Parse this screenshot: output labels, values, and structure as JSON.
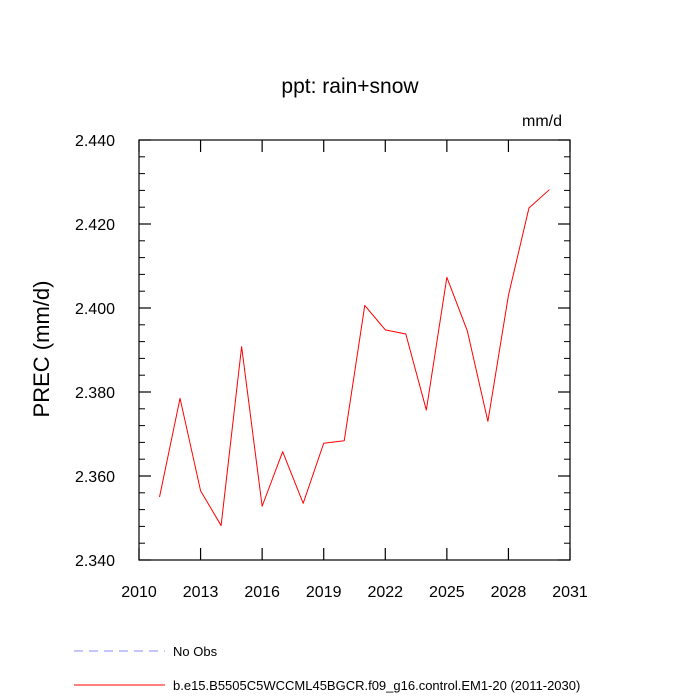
{
  "chart_data": {
    "type": "line",
    "title": "ppt: rain+snow",
    "units_label": "mm/d",
    "ylabel": "PREC  (mm/d)",
    "xlabel": "",
    "xlim": [
      2010,
      2031
    ],
    "ylim": [
      2.34,
      2.44
    ],
    "x_ticks": [
      2010,
      2013,
      2016,
      2019,
      2022,
      2025,
      2028,
      2031
    ],
    "x_tick_labels": [
      "2010",
      "2013",
      "2016",
      "2019",
      "2022",
      "2025",
      "2028",
      "2031"
    ],
    "y_ticks": [
      2.34,
      2.36,
      2.38,
      2.4,
      2.42,
      2.44
    ],
    "y_tick_labels": [
      "2.340",
      "2.360",
      "2.380",
      "2.400",
      "2.420",
      "2.440"
    ],
    "grid": false,
    "legend_position": "below",
    "series": [
      {
        "name": "b.e15.B5505C5WCCML45BGCR.f09_g16.control.EM1-20 (2011-2030)",
        "color": "#ff0000",
        "style": "solid",
        "x": [
          2011,
          2012,
          2013,
          2014,
          2015,
          2016,
          2017,
          2018,
          2019,
          2020,
          2021,
          2022,
          2023,
          2024,
          2025,
          2026,
          2027,
          2028,
          2029,
          2030
        ],
        "y": [
          2.355,
          2.3785,
          2.3565,
          2.3482,
          2.3908,
          2.3528,
          2.3658,
          2.3535,
          2.3678,
          2.3684,
          2.4006,
          2.3948,
          2.3938,
          2.3757,
          2.4073,
          2.3945,
          2.373,
          2.403,
          2.4238,
          2.4282
        ]
      }
    ],
    "legend": [
      {
        "label": "No Obs",
        "color": "#8888ff",
        "style": "dashed"
      },
      {
        "label": "b.e15.B5505C5WCCML45BGCR.f09_g16.control.EM1-20 (2011-2030)",
        "color": "#ff0000",
        "style": "solid"
      }
    ]
  }
}
